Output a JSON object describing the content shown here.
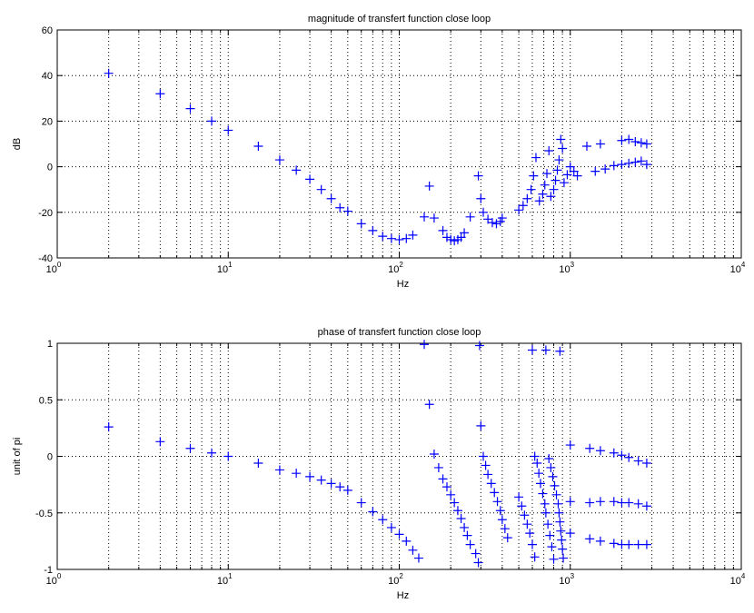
{
  "chart_data": [
    {
      "type": "scatter",
      "title": "magnitude of transfert function close loop",
      "xlabel": "Hz",
      "ylabel": "dB",
      "xscale": "log",
      "xlim": [
        1,
        10000
      ],
      "ylim": [
        -40,
        60
      ],
      "yticks": [
        -40,
        -20,
        0,
        20,
        40,
        60
      ],
      "xtick_labels": [
        {
          "base": "10",
          "exp": "0"
        },
        {
          "base": "10",
          "exp": "1"
        },
        {
          "base": "10",
          "exp": "2"
        },
        {
          "base": "10",
          "exp": "3"
        },
        {
          "base": "10",
          "exp": "4"
        }
      ],
      "grid": true,
      "marker": "+",
      "color": "#0000ff",
      "points": [
        [
          2,
          41
        ],
        [
          4,
          32
        ],
        [
          6,
          25.5
        ],
        [
          8,
          20
        ],
        [
          10,
          16
        ],
        [
          15,
          9
        ],
        [
          20,
          3
        ],
        [
          25,
          -1.5
        ],
        [
          30,
          -5.5
        ],
        [
          35,
          -10
        ],
        [
          40,
          -14
        ],
        [
          45,
          -18
        ],
        [
          50,
          -19.5
        ],
        [
          60,
          -25
        ],
        [
          70,
          -28
        ],
        [
          80,
          -30.5
        ],
        [
          90,
          -31.5
        ],
        [
          100,
          -32
        ],
        [
          110,
          -31.5
        ],
        [
          120,
          -30
        ],
        [
          140,
          -22
        ],
        [
          150,
          -8.5
        ],
        [
          160,
          -22.5
        ],
        [
          180,
          -28
        ],
        [
          190,
          -31
        ],
        [
          200,
          -32
        ],
        [
          210,
          -32.5
        ],
        [
          220,
          -32
        ],
        [
          230,
          -31
        ],
        [
          240,
          -29
        ],
        [
          260,
          -22
        ],
        [
          290,
          -4
        ],
        [
          300,
          -14
        ],
        [
          310,
          -20
        ],
        [
          330,
          -23
        ],
        [
          350,
          -24.5
        ],
        [
          370,
          -25
        ],
        [
          390,
          -24
        ],
        [
          400,
          -22.5
        ],
        [
          500,
          -19
        ],
        [
          530,
          -17
        ],
        [
          560,
          -14
        ],
        [
          590,
          -10
        ],
        [
          610,
          -4
        ],
        [
          630,
          4
        ],
        [
          660,
          -15
        ],
        [
          690,
          -12
        ],
        [
          710,
          -8
        ],
        [
          730,
          -3
        ],
        [
          750,
          7
        ],
        [
          770,
          -13
        ],
        [
          800,
          -10
        ],
        [
          820,
          -6
        ],
        [
          840,
          -1.5
        ],
        [
          860,
          3
        ],
        [
          880,
          12
        ],
        [
          900,
          8
        ],
        [
          920,
          -7
        ],
        [
          960,
          -3.5
        ],
        [
          1000,
          0
        ],
        [
          1050,
          -2
        ],
        [
          1100,
          -4
        ],
        [
          1250,
          9
        ],
        [
          1400,
          -2
        ],
        [
          1500,
          10
        ],
        [
          1600,
          -1
        ],
        [
          1800,
          0.5
        ],
        [
          2000,
          11.5
        ],
        [
          2200,
          12
        ],
        [
          2400,
          11
        ],
        [
          2600,
          10.5
        ],
        [
          2800,
          10
        ],
        [
          2000,
          1
        ],
        [
          2200,
          1.5
        ],
        [
          2400,
          2
        ],
        [
          2600,
          2.5
        ],
        [
          2800,
          1
        ]
      ]
    },
    {
      "type": "scatter",
      "title": "phase of transfert function close loop",
      "xlabel": "Hz",
      "ylabel": "unit of pi",
      "xscale": "log",
      "xlim": [
        1,
        10000
      ],
      "ylim": [
        -1,
        1
      ],
      "yticks": [
        -1,
        -0.5,
        0,
        0.5,
        1
      ],
      "xtick_labels": [
        {
          "base": "10",
          "exp": "0"
        },
        {
          "base": "10",
          "exp": "1"
        },
        {
          "base": "10",
          "exp": "2"
        },
        {
          "base": "10",
          "exp": "3"
        },
        {
          "base": "10",
          "exp": "4"
        }
      ],
      "grid": true,
      "marker": "+",
      "color": "#0000ff",
      "points": [
        [
          2,
          0.26
        ],
        [
          4,
          0.13
        ],
        [
          6,
          0.07
        ],
        [
          8,
          0.03
        ],
        [
          10,
          0.0
        ],
        [
          15,
          -0.06
        ],
        [
          20,
          -0.12
        ],
        [
          25,
          -0.15
        ],
        [
          30,
          -0.18
        ],
        [
          35,
          -0.21
        ],
        [
          40,
          -0.24
        ],
        [
          45,
          -0.27
        ],
        [
          50,
          -0.3
        ],
        [
          60,
          -0.41
        ],
        [
          70,
          -0.49
        ],
        [
          80,
          -0.56
        ],
        [
          90,
          -0.63
        ],
        [
          100,
          -0.69
        ],
        [
          110,
          -0.75
        ],
        [
          120,
          -0.83
        ],
        [
          130,
          -0.9
        ],
        [
          140,
          0.99
        ],
        [
          150,
          0.46
        ],
        [
          160,
          0.02
        ],
        [
          170,
          -0.1
        ],
        [
          180,
          -0.2
        ],
        [
          190,
          -0.27
        ],
        [
          200,
          -0.34
        ],
        [
          210,
          -0.41
        ],
        [
          220,
          -0.48
        ],
        [
          230,
          -0.55
        ],
        [
          240,
          -0.63
        ],
        [
          250,
          -0.7
        ],
        [
          260,
          -0.78
        ],
        [
          280,
          -0.86
        ],
        [
          290,
          -0.94
        ],
        [
          295,
          0.98
        ],
        [
          300,
          0.27
        ],
        [
          310,
          0.0
        ],
        [
          320,
          -0.08
        ],
        [
          330,
          -0.16
        ],
        [
          345,
          -0.24
        ],
        [
          360,
          -0.32
        ],
        [
          375,
          -0.4
        ],
        [
          390,
          -0.48
        ],
        [
          400,
          -0.56
        ],
        [
          415,
          -0.64
        ],
        [
          430,
          -0.72
        ],
        [
          500,
          -0.36
        ],
        [
          520,
          -0.44
        ],
        [
          540,
          -0.52
        ],
        [
          560,
          -0.6
        ],
        [
          580,
          -0.68
        ],
        [
          600,
          -0.78
        ],
        [
          620,
          -0.89
        ],
        [
          600,
          0.94
        ],
        [
          620,
          0.0
        ],
        [
          640,
          -0.06
        ],
        [
          655,
          -0.15
        ],
        [
          670,
          -0.24
        ],
        [
          690,
          -0.33
        ],
        [
          710,
          -0.42
        ],
        [
          720,
          -0.5
        ],
        [
          740,
          -0.6
        ],
        [
          760,
          -0.7
        ],
        [
          780,
          -0.8
        ],
        [
          800,
          -0.91
        ],
        [
          720,
          0.94
        ],
        [
          750,
          -0.02
        ],
        [
          770,
          -0.1
        ],
        [
          790,
          -0.18
        ],
        [
          810,
          -0.26
        ],
        [
          830,
          -0.34
        ],
        [
          850,
          -0.42
        ],
        [
          860,
          -0.5
        ],
        [
          870,
          -0.58
        ],
        [
          880,
          -0.66
        ],
        [
          890,
          -0.74
        ],
        [
          900,
          -0.82
        ],
        [
          910,
          -0.9
        ],
        [
          870,
          0.93
        ],
        [
          1000,
          0.1
        ],
        [
          1000,
          -0.4
        ],
        [
          1000,
          -0.68
        ],
        [
          1300,
          0.07
        ],
        [
          1300,
          -0.41
        ],
        [
          1300,
          -0.73
        ],
        [
          1500,
          0.05
        ],
        [
          1500,
          -0.4
        ],
        [
          1500,
          -0.75
        ],
        [
          1800,
          0.03
        ],
        [
          1800,
          -0.4
        ],
        [
          1800,
          -0.77
        ],
        [
          2000,
          0.01
        ],
        [
          2000,
          -0.41
        ],
        [
          2000,
          -0.78
        ],
        [
          2200,
          -0.01
        ],
        [
          2200,
          -0.41
        ],
        [
          2200,
          -0.78
        ],
        [
          2500,
          -0.04
        ],
        [
          2500,
          -0.42
        ],
        [
          2500,
          -0.78
        ],
        [
          2800,
          -0.06
        ],
        [
          2800,
          -0.44
        ],
        [
          2800,
          -0.78
        ]
      ]
    }
  ]
}
